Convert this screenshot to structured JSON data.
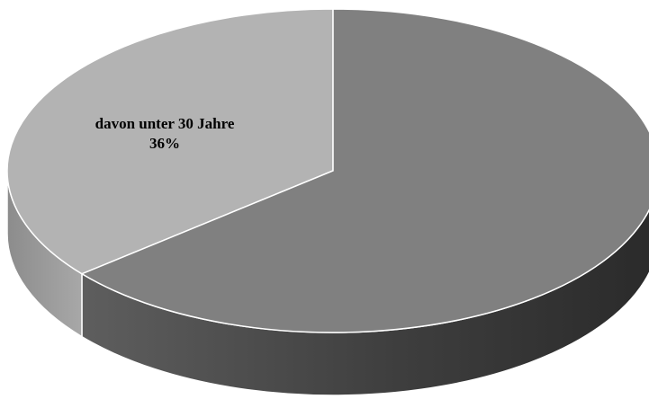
{
  "chart_data": {
    "type": "pie",
    "style": "3d",
    "title": "",
    "slices": [
      {
        "label": "davon unter 30 Jahre",
        "value": 36,
        "value_label": "36%",
        "top_color": "#b3b3b3",
        "side_color": "#9a9a9a",
        "label_visible": true
      },
      {
        "label": "",
        "value": 64,
        "value_label": "",
        "top_color": "#808080",
        "side_color": "#3c3c3c",
        "label_visible": false
      }
    ],
    "legend": "none",
    "background": "#ffffff"
  }
}
